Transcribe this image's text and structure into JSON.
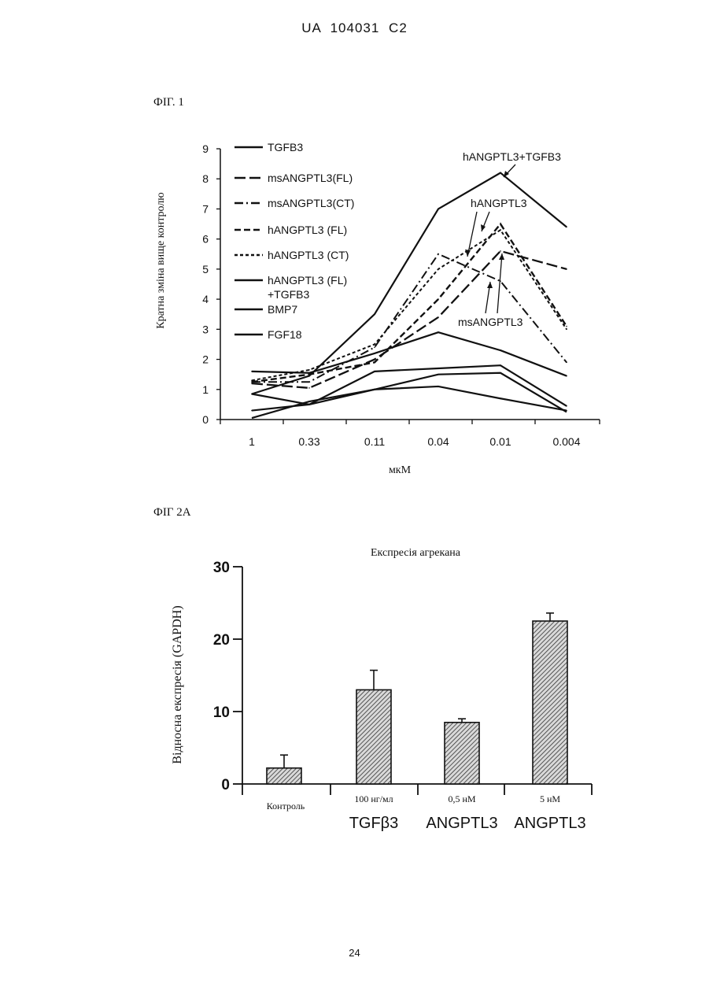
{
  "header": {
    "patent": "UA   104031   C2"
  },
  "page_number": "24",
  "chart_data": [
    {
      "type": "line",
      "figure_label": "ФІГ. 1",
      "xlabel": "мкМ",
      "ylabel": "Кратна зміна вище контролю",
      "categories": [
        "1",
        "0.33",
        "0.11",
        "0.04",
        "0.01",
        "0.004"
      ],
      "yticks": [
        "0",
        "1",
        "2",
        "3",
        "4",
        "5",
        "6",
        "7",
        "8",
        "9"
      ],
      "ylim": [
        0,
        9
      ],
      "grid": false,
      "legend": [
        {
          "name": "TGFB3",
          "style": "solid"
        },
        {
          "name": "msANGPTL3(FL)",
          "style": "long-dash"
        },
        {
          "name": "msANGPTL3(CT)",
          "style": "dash-dot"
        },
        {
          "name": "hANGPTL3 (FL)",
          "style": "dash"
        },
        {
          "name": "hANGPTL3 (CT)",
          "style": "short-dash"
        },
        {
          "name": "hANGPTL3 (FL)\n+TGFB3",
          "style": "solid"
        },
        {
          "name": "BMP7",
          "style": "solid"
        },
        {
          "name": "FGF18",
          "style": "solid"
        }
      ],
      "series": [
        {
          "name": "TGFB3",
          "style": "solid",
          "values": [
            1.6,
            1.55,
            2.2,
            2.9,
            2.3,
            1.45
          ]
        },
        {
          "name": "msANGPTL3(FL)",
          "style": "long-dash",
          "values": [
            1.2,
            1.05,
            2.0,
            3.4,
            5.6,
            5.0
          ]
        },
        {
          "name": "msANGPTL3(CT)",
          "style": "dash-dot",
          "values": [
            1.25,
            1.25,
            2.4,
            5.5,
            4.6,
            1.9
          ]
        },
        {
          "name": "hANGPTL3 (FL)",
          "style": "dash",
          "values": [
            1.25,
            1.5,
            1.9,
            4.0,
            6.5,
            3.1
          ]
        },
        {
          "name": "hANGPTL3 (CT)",
          "style": "short-dash",
          "values": [
            1.3,
            1.65,
            2.5,
            5.0,
            6.3,
            3.0
          ]
        },
        {
          "name": "hANGPTL3 (FL)\n+TGFB3",
          "style": "solid",
          "values": [
            0.85,
            1.45,
            3.5,
            7.0,
            8.2,
            6.4
          ]
        },
        {
          "name": "BMP7",
          "style": "solid",
          "values": [
            0.85,
            0.5,
            1.6,
            1.7,
            1.8,
            0.45
          ]
        },
        {
          "name": "FGF18",
          "style": "solid",
          "values": [
            0.3,
            0.5,
            1.0,
            1.1,
            0.7,
            0.3
          ]
        }
      ],
      "extra_series_lines": [
        {
          "style": "solid",
          "values": [
            0.05,
            0.6,
            1.0,
            1.5,
            1.55,
            0.25
          ]
        }
      ],
      "annotations": [
        {
          "text": "hANGPTL3+TGFB3"
        },
        {
          "text": "hANGPTL3"
        },
        {
          "text": "msANGPTL3"
        }
      ]
    },
    {
      "type": "bar",
      "figure_label": "ФІГ 2А",
      "title": "Експресія агрекана",
      "ylabel": "Відносна експресія (GAPDH)",
      "yticks": [
        "0",
        "10",
        "20",
        "30"
      ],
      "ylim": [
        0,
        30
      ],
      "categories": [
        {
          "dose": "Контроль",
          "name": ""
        },
        {
          "dose": "100 нг/мл",
          "name": "TGFβ3"
        },
        {
          "dose": "0,5 нМ",
          "name": "ANGPTL3"
        },
        {
          "dose": "5 нМ",
          "name": "ANGPTL3"
        }
      ],
      "values": [
        2.2,
        13.0,
        8.5,
        22.5
      ],
      "errors": [
        1.8,
        2.7,
        0.5,
        1.1
      ],
      "bar_fill": "hatched"
    }
  ]
}
